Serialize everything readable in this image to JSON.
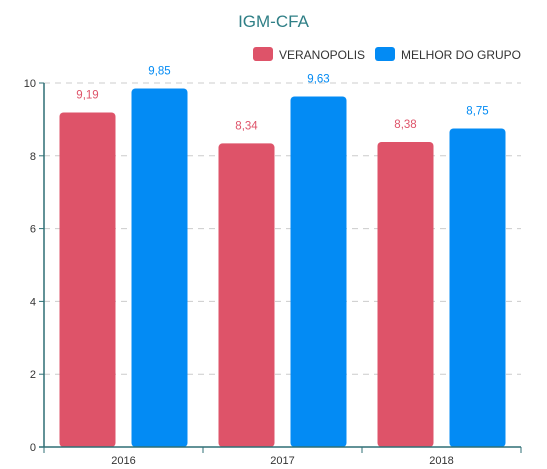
{
  "chart_data": {
    "type": "bar",
    "title": "IGM-CFA",
    "categories": [
      "2016",
      "2017",
      "2018"
    ],
    "series": [
      {
        "name": "VERANOPOLIS",
        "color": "#de5369",
        "values": [
          9.19,
          8.34,
          8.38
        ],
        "labels": [
          "9,19",
          "8,34",
          "8,38"
        ]
      },
      {
        "name": "MELHOR DO GRUPO",
        "color": "#038bf4",
        "values": [
          9.85,
          9.63,
          8.75
        ],
        "labels": [
          "9,85",
          "9,63",
          "8,75"
        ]
      }
    ],
    "ylim": [
      0,
      10
    ],
    "yticks": [
      0,
      2,
      4,
      6,
      8,
      10
    ],
    "ytick_labels": [
      "0",
      "2",
      "4",
      "6",
      "8",
      "10"
    ],
    "grid": true,
    "legend_position": "top-right",
    "axis_color": "#2f6f75",
    "grid_color": "#cccccc"
  }
}
